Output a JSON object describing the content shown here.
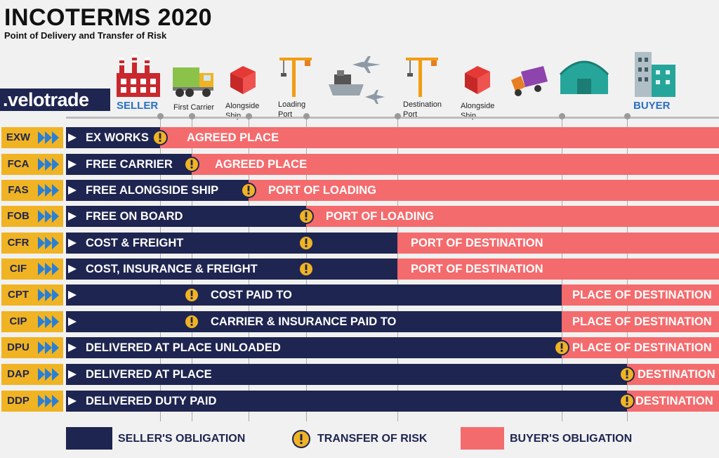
{
  "header": {
    "title": "INCOTERMS 2020",
    "subtitle": "Point of Delivery and Transfer of Risk",
    "logo": ".velotrade"
  },
  "stages": {
    "seller": "SELLER",
    "first_carrier": "First Carrier",
    "alongside_ship_1": "Alongside\nShip",
    "loading_port": "Loading\nPort",
    "destination_port": "Destination\nPort",
    "alongside_ship_2": "Alongside\nShip",
    "buyer": "BUYER"
  },
  "terms": [
    {
      "code": "EXW",
      "seller_label": "EX WORKS",
      "buyer_label": "AGREED PLACE"
    },
    {
      "code": "FCA",
      "seller_label": "FREE CARRIER",
      "buyer_label": "AGREED PLACE"
    },
    {
      "code": "FAS",
      "seller_label": "FREE ALONGSIDE SHIP",
      "buyer_label": "PORT OF LOADING"
    },
    {
      "code": "FOB",
      "seller_label": "FREE ON BOARD",
      "buyer_label": "PORT OF LOADING"
    },
    {
      "code": "CFR",
      "seller_label": "COST & FREIGHT",
      "buyer_label": "PORT OF DESTINATION"
    },
    {
      "code": "CIF",
      "seller_label": "COST, INSURANCE & FREIGHT",
      "buyer_label": "PORT OF DESTINATION"
    },
    {
      "code": "CPT",
      "seller_label": "COST PAID TO",
      "buyer_label": "PLACE OF DESTINATION"
    },
    {
      "code": "CIP",
      "seller_label": "CARRIER & INSURANCE PAID TO",
      "buyer_label": "PLACE OF DESTINATION"
    },
    {
      "code": "DPU",
      "seller_label": "DELIVERED AT PLACE UNLOADED",
      "buyer_label": "PLACE OF DESTINATION"
    },
    {
      "code": "DAP",
      "seller_label": "DELIVERED AT PLACE",
      "buyer_label": "DESTINATION"
    },
    {
      "code": "DDP",
      "seller_label": "DELIVERED DUTY PAID",
      "buyer_label": "DESTINATION"
    }
  ],
  "legend": {
    "seller": "SELLER'S OBLIGATION",
    "risk": "TRANSFER OF RISK",
    "buyer": "BUYER'S OBLIGATION"
  },
  "colors": {
    "navy": "#1e2550",
    "pink": "#f46b6d",
    "gold": "#f0b323",
    "blue_label": "#2a6fc7"
  }
}
